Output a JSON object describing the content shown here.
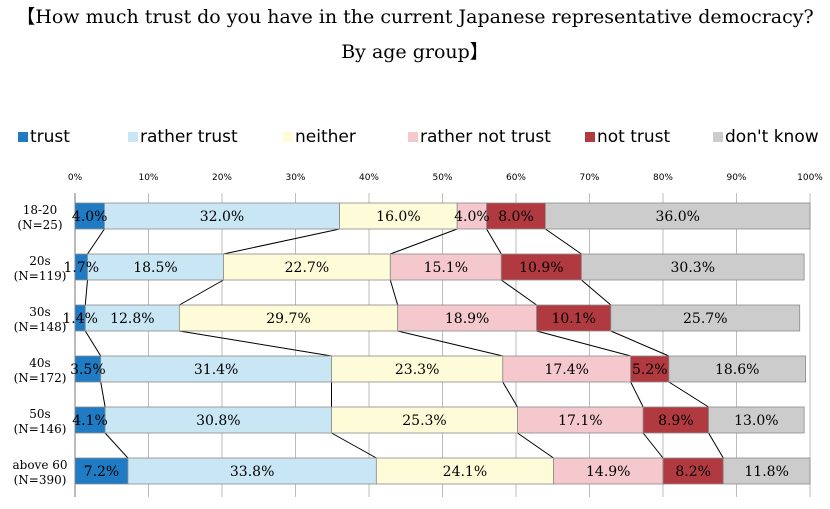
{
  "title": {
    "line1": "【How much trust do you have in the current Japanese representative democracy?",
    "line2": "By age group】"
  },
  "colors": {
    "trust": "#1f7bc4",
    "rather_trust": "#c9e6f4",
    "neither": "#fdfbd8",
    "rather_not_trust": "#f4c8cc",
    "not_trust": "#b13a40",
    "dont_know": "#cccccc"
  },
  "chart_data": {
    "type": "bar",
    "orientation": "horizontal",
    "stacked": "percent",
    "xlim": [
      0,
      100
    ],
    "x_ticks": [
      "0%",
      "10%",
      "20%",
      "30%",
      "40%",
      "50%",
      "60%",
      "70%",
      "80%",
      "90%",
      "100%"
    ],
    "categories": [
      {
        "label": "18-20",
        "n": "(N=25)"
      },
      {
        "label": "20s",
        "n": "(N=119)"
      },
      {
        "label": "30s",
        "n": "(N=148)"
      },
      {
        "label": "40s",
        "n": "(N=172)"
      },
      {
        "label": "50s",
        "n": "(N=146)"
      },
      {
        "label": "above 60",
        "n": "(N=390)"
      }
    ],
    "series": [
      {
        "name": "trust",
        "color_key": "trust",
        "values": [
          4.0,
          1.7,
          1.4,
          3.5,
          4.1,
          7.2
        ],
        "labels": [
          "4.0%",
          "1.7%",
          "1.4%",
          "3.5%",
          "4.1%",
          "7.2%"
        ]
      },
      {
        "name": "rather trust",
        "color_key": "rather_trust",
        "values": [
          32.0,
          18.5,
          12.8,
          31.4,
          30.8,
          33.8
        ],
        "labels": [
          "32.0%",
          "18.5%",
          "12.8%",
          "31.4%",
          "30.8%",
          "33.8%"
        ]
      },
      {
        "name": "neither",
        "color_key": "neither",
        "values": [
          16.0,
          22.7,
          29.7,
          23.3,
          25.3,
          24.1
        ],
        "labels": [
          "16.0%",
          "22.7%",
          "29.7%",
          "23.3%",
          "25.3%",
          "24.1%"
        ]
      },
      {
        "name": "rather not trust",
        "color_key": "rather_not_trust",
        "values": [
          4.0,
          15.1,
          18.9,
          17.4,
          17.1,
          14.9
        ],
        "labels": [
          "4.0%",
          "15.1%",
          "18.9%",
          "17.4%",
          "17.1%",
          "14.9%"
        ]
      },
      {
        "name": "not trust",
        "color_key": "not_trust",
        "values": [
          8.0,
          10.9,
          10.1,
          5.2,
          8.9,
          8.2
        ],
        "labels": [
          "8.0%",
          "10.9%",
          "10.1%",
          "5.2%",
          "8.9%",
          "8.2%"
        ]
      },
      {
        "name": "don't know",
        "color_key": "dont_know",
        "values": [
          36.0,
          30.3,
          25.7,
          18.6,
          13.0,
          11.8
        ],
        "labels": [
          "36.0%",
          "30.3%",
          "25.7%",
          "18.6%",
          "13.0%",
          "11.8%"
        ]
      }
    ],
    "legend": "top",
    "series_lines": true,
    "grid": true
  }
}
